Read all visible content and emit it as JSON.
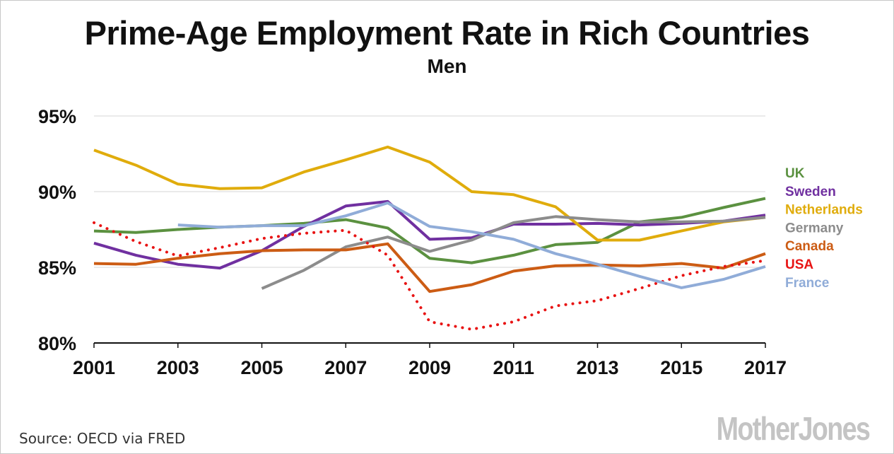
{
  "chart_data": {
    "type": "line",
    "title": "Prime-Age Employment Rate in Rich Countries",
    "subtitle": "Men",
    "xlabel": "",
    "ylabel": "",
    "x": [
      2001,
      2002,
      2003,
      2004,
      2005,
      2006,
      2007,
      2008,
      2009,
      2010,
      2011,
      2012,
      2013,
      2014,
      2015,
      2016,
      2017
    ],
    "xlim": [
      2001,
      2017
    ],
    "ylim": [
      80,
      95
    ],
    "x_ticks": [
      "2001",
      "2003",
      "2005",
      "2007",
      "2009",
      "2011",
      "2013",
      "2015",
      "2017"
    ],
    "y_ticks": [
      "80%",
      "85%",
      "90%",
      "95%"
    ],
    "grid": "horizontal",
    "legend_position": "right",
    "series": [
      {
        "name": "UK",
        "color": "#5b9140",
        "style": "solid",
        "values": [
          87.4,
          87.3,
          87.5,
          87.65,
          87.75,
          87.9,
          88.15,
          87.6,
          85.6,
          85.3,
          85.8,
          86.5,
          86.65,
          88.0,
          88.3,
          88.95,
          89.55
        ]
      },
      {
        "name": "Sweden",
        "color": "#7030a0",
        "style": "solid",
        "values": [
          86.6,
          85.8,
          85.2,
          84.95,
          86.1,
          87.7,
          89.05,
          89.35,
          86.85,
          86.95,
          87.85,
          87.85,
          87.9,
          87.8,
          87.9,
          88.05,
          88.45
        ]
      },
      {
        "name": "Netherlands",
        "color": "#e0ac0c",
        "style": "solid",
        "values": [
          92.75,
          91.75,
          90.5,
          90.2,
          90.25,
          91.3,
          92.1,
          92.95,
          91.95,
          90.0,
          89.8,
          89.0,
          86.8,
          86.8,
          87.4,
          88.0,
          88.3
        ]
      },
      {
        "name": "Germany",
        "color": "#8c8c8c",
        "style": "solid",
        "values": [
          null,
          null,
          null,
          null,
          83.6,
          84.8,
          86.35,
          87.0,
          86.05,
          86.8,
          87.95,
          88.35,
          88.15,
          88.0,
          88.0,
          88.05,
          88.3
        ]
      },
      {
        "name": "Canada",
        "color": "#cc5c14",
        "style": "solid",
        "values": [
          85.25,
          85.2,
          85.6,
          85.9,
          86.1,
          86.15,
          86.15,
          86.55,
          83.4,
          83.85,
          84.75,
          85.1,
          85.15,
          85.1,
          85.25,
          84.95,
          85.9
        ]
      },
      {
        "name": "USA",
        "color": "#e81414",
        "style": "dotted",
        "values": [
          87.95,
          86.7,
          85.75,
          86.3,
          86.9,
          87.25,
          87.45,
          85.8,
          81.4,
          80.9,
          81.4,
          82.45,
          82.8,
          83.6,
          84.45,
          85.05,
          85.45
        ]
      },
      {
        "name": "France",
        "color": "#90acd8",
        "style": "solid",
        "values": [
          null,
          null,
          87.8,
          87.65,
          87.75,
          87.75,
          88.4,
          89.25,
          87.7,
          87.35,
          86.85,
          85.9,
          85.2,
          84.4,
          83.65,
          84.2,
          85.05
        ]
      }
    ]
  },
  "footer": {
    "source": "Source: OECD via FRED",
    "logo_text": "MotherJones"
  }
}
